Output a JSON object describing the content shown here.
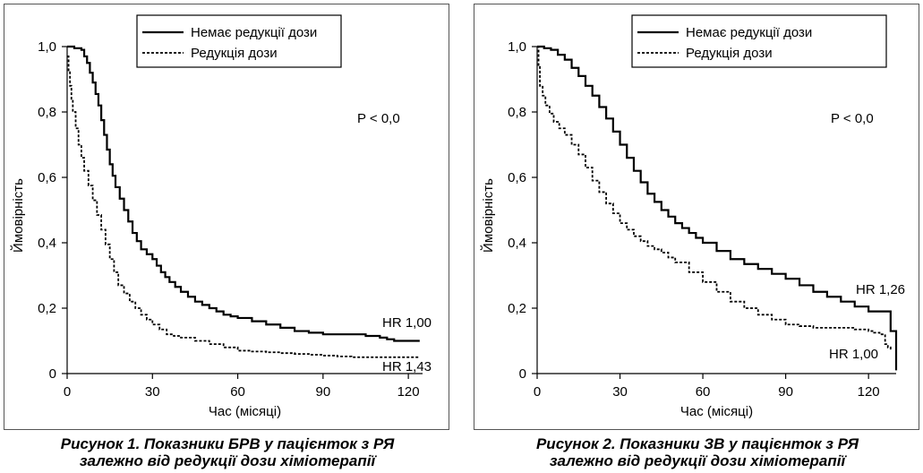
{
  "chart_data": [
    {
      "type": "line",
      "xlabel": "Час (місяці)",
      "ylabel": "Ймовірність",
      "xlim": [
        0,
        125
      ],
      "ylim": [
        0,
        1.0
      ],
      "xticks": [
        "0",
        "30",
        "60",
        "90",
        "120"
      ],
      "yticks": [
        "0",
        "0,2",
        "0,4",
        "0,6",
        "0,8",
        "1,0"
      ],
      "legend_position": "top-center",
      "p_text": "P < 0,0",
      "series": [
        {
          "name": "Немає редукції дози",
          "style": "solid",
          "label": "HR 1,00",
          "x": [
            0,
            5,
            7,
            9,
            11,
            13,
            15,
            17,
            20,
            23,
            26,
            30,
            33,
            36,
            40,
            45,
            50,
            55,
            60,
            70,
            80,
            90,
            100,
            110,
            115,
            124
          ],
          "y": [
            1.0,
            0.99,
            0.95,
            0.89,
            0.82,
            0.73,
            0.64,
            0.57,
            0.5,
            0.43,
            0.38,
            0.35,
            0.31,
            0.28,
            0.25,
            0.22,
            0.2,
            0.18,
            0.17,
            0.15,
            0.13,
            0.12,
            0.12,
            0.11,
            0.1,
            0.1
          ]
        },
        {
          "name": "Редукція дози",
          "style": "dashed",
          "label": "HR 1,43",
          "x": [
            0,
            1,
            2,
            4,
            6,
            9,
            12,
            15,
            18,
            22,
            26,
            30,
            35,
            40,
            50,
            60,
            70,
            80,
            90,
            100,
            110,
            124
          ],
          "y": [
            0.97,
            0.88,
            0.8,
            0.7,
            0.62,
            0.53,
            0.44,
            0.35,
            0.27,
            0.22,
            0.18,
            0.15,
            0.12,
            0.11,
            0.09,
            0.07,
            0.065,
            0.06,
            0.055,
            0.05,
            0.05,
            0.05
          ]
        }
      ]
    },
    {
      "type": "line",
      "xlabel": "Час (місяці)",
      "ylabel": "Ймовірність",
      "xlim": [
        0,
        130
      ],
      "ylim": [
        0,
        1.0
      ],
      "xticks": [
        "0",
        "30",
        "60",
        "90",
        "120"
      ],
      "yticks": [
        "0",
        "0,2",
        "0,4",
        "0,6",
        "0,8",
        "1,0"
      ],
      "legend_position": "top-right",
      "p_text": "P < 0,0",
      "series": [
        {
          "name": "Немає редукції дози",
          "style": "solid",
          "label": "HR 1,26",
          "x": [
            0,
            5,
            10,
            15,
            20,
            25,
            30,
            35,
            40,
            45,
            50,
            55,
            60,
            70,
            80,
            90,
            100,
            110,
            120,
            125,
            128,
            128,
            130,
            130
          ],
          "y": [
            1.0,
            0.99,
            0.96,
            0.91,
            0.85,
            0.78,
            0.7,
            0.62,
            0.55,
            0.5,
            0.46,
            0.43,
            0.4,
            0.35,
            0.32,
            0.29,
            0.25,
            0.22,
            0.19,
            0.19,
            0.19,
            0.13,
            0.13,
            0.01
          ]
        },
        {
          "name": "Редукція дози",
          "style": "dashed",
          "label": "HR 1,00",
          "x": [
            0,
            1,
            3,
            6,
            10,
            15,
            20,
            25,
            30,
            35,
            40,
            45,
            50,
            60,
            70,
            80,
            90,
            100,
            110,
            120,
            124,
            126,
            126,
            128
          ],
          "y": [
            1.0,
            0.88,
            0.82,
            0.77,
            0.73,
            0.67,
            0.59,
            0.52,
            0.46,
            0.42,
            0.39,
            0.37,
            0.34,
            0.28,
            0.22,
            0.18,
            0.15,
            0.14,
            0.14,
            0.13,
            0.12,
            0.12,
            0.09,
            0.07
          ]
        }
      ]
    }
  ],
  "captions": [
    {
      "line1": "Рисунок 1.  Показники БРВ у пацієнток з РЯ",
      "line2": "залежно від редукції дози хіміотерапії"
    },
    {
      "line1": "Рисунок 2.  Показники ЗВ у пацієнток з РЯ",
      "line2": "залежно від редукції дози хіміотерапії"
    }
  ]
}
